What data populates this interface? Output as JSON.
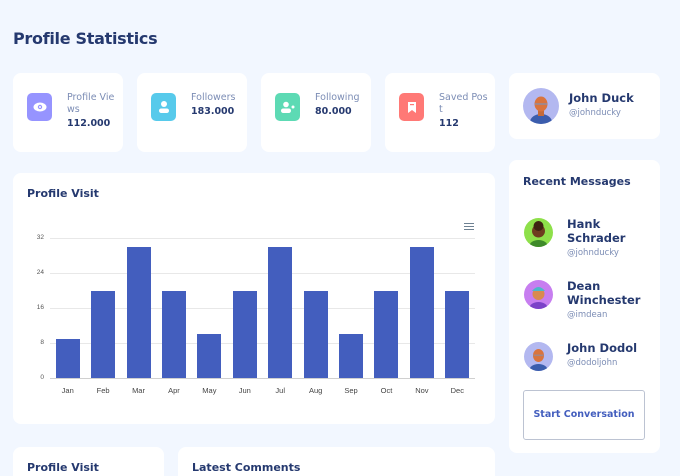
{
  "page": {
    "title": "Profile Statistics",
    "background": "#f2f7ff"
  },
  "stats": [
    {
      "label": "Profile Views",
      "value": "112.000",
      "icon": "eye-icon",
      "color": "#9694ff"
    },
    {
      "label": "Followers",
      "value": "183.000",
      "icon": "user-icon",
      "color": "#57caeb"
    },
    {
      "label": "Following",
      "value": "80.000",
      "icon": "user-plus-icon",
      "color": "#5ddab4"
    },
    {
      "label": "Saved Post",
      "value": "112",
      "icon": "bookmark-icon",
      "color": "#ff7976"
    }
  ],
  "profile": {
    "name": "John Duck",
    "handle": "@johnducky",
    "avatar_bg": "#b3b8f0"
  },
  "chart_card": {
    "title": "Profile Visit",
    "menu_icon": "hamburger-menu-icon"
  },
  "chart_data": {
    "type": "bar",
    "title": "Profile Visit",
    "categories": [
      "Jan",
      "Feb",
      "Mar",
      "Apr",
      "May",
      "Jun",
      "Jul",
      "Aug",
      "Sep",
      "Oct",
      "Nov",
      "Dec"
    ],
    "values": [
      9,
      20,
      30,
      20,
      10,
      20,
      30,
      20,
      10,
      20,
      30,
      20
    ],
    "yticks": [
      "0",
      "8",
      "16",
      "24",
      "32"
    ],
    "ylim": [
      0,
      32
    ],
    "xlabel": "",
    "ylabel": "",
    "grid": true,
    "color": "#435ebe"
  },
  "recent_messages": {
    "title": "Recent Messages",
    "items": [
      {
        "name": "Hank Schrader",
        "handle": "@johnducky",
        "avatar_bg": "#8ee04a"
      },
      {
        "name": "Dean Winchester",
        "handle": "@imdean",
        "avatar_bg": "#c77ef0"
      },
      {
        "name": "John Dodol",
        "handle": "@dodoljohn",
        "avatar_bg": "#b3b8f0"
      }
    ],
    "button_label": "Start Conversation"
  },
  "bottom_cards": {
    "left_title": "Profile Visit",
    "right_title": "Latest Comments"
  }
}
